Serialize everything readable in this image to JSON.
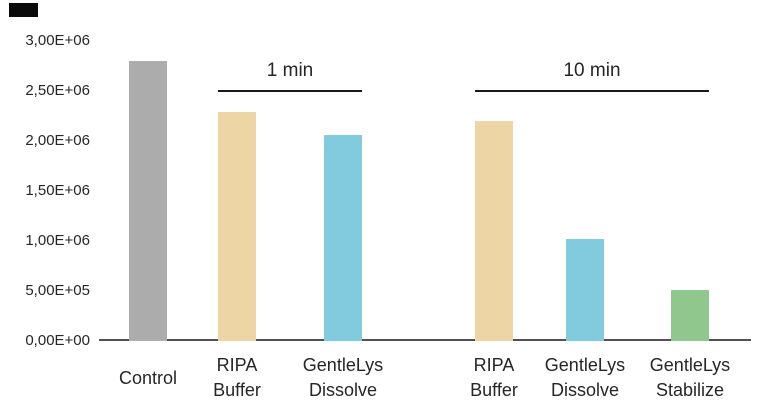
{
  "page": {
    "background_color": "#ffffff",
    "text_color": "#262626",
    "corner_mark_color": "#0a0a0a"
  },
  "chart_data": {
    "type": "bar",
    "title": "",
    "xlabel": "",
    "ylabel": "",
    "grid": false,
    "legend": false,
    "number_format": "comma-decimal scientific (e.g. 2,50E+06)",
    "ylim": [
      0,
      3000000
    ],
    "y_ticks": [
      {
        "label": "0,00E+00",
        "value": 0
      },
      {
        "label": "5,00E+05",
        "value": 500000
      },
      {
        "label": "1,00E+06",
        "value": 1000000
      },
      {
        "label": "1,50E+06",
        "value": 1500000
      },
      {
        "label": "2,00E+06",
        "value": 2000000
      },
      {
        "label": "2,50E+06",
        "value": 2500000
      },
      {
        "label": "3,00E+06",
        "value": 3000000
      }
    ],
    "categories": [
      "Control",
      "RIPA Buffer",
      "GentleLys Dissolve",
      "RIPA Buffer",
      "GentleLys Dissolve",
      "GentleLys Stabilize"
    ],
    "category_lines": [
      [
        "Control"
      ],
      [
        "RIPA",
        "Buffer"
      ],
      [
        "GentleLys",
        "Dissolve"
      ],
      [
        "RIPA",
        "Buffer"
      ],
      [
        "GentleLys",
        "Dissolve"
      ],
      [
        "GentleLys",
        "Stabilize"
      ]
    ],
    "values": [
      2800000,
      2290000,
      2060000,
      2200000,
      1020000,
      510000
    ],
    "bar_colors": [
      "#acacac",
      "#eed5a5",
      "#82cade",
      "#eed5a5",
      "#82cade",
      "#90c78c"
    ],
    "groups": [
      {
        "label": "1 min",
        "bars": [
          1,
          2
        ]
      },
      {
        "label": "10 min",
        "bars": [
          3,
          4,
          5
        ]
      }
    ],
    "colors": {
      "axis_line": "#515151",
      "bracket_line": "#1a1a1a"
    }
  }
}
